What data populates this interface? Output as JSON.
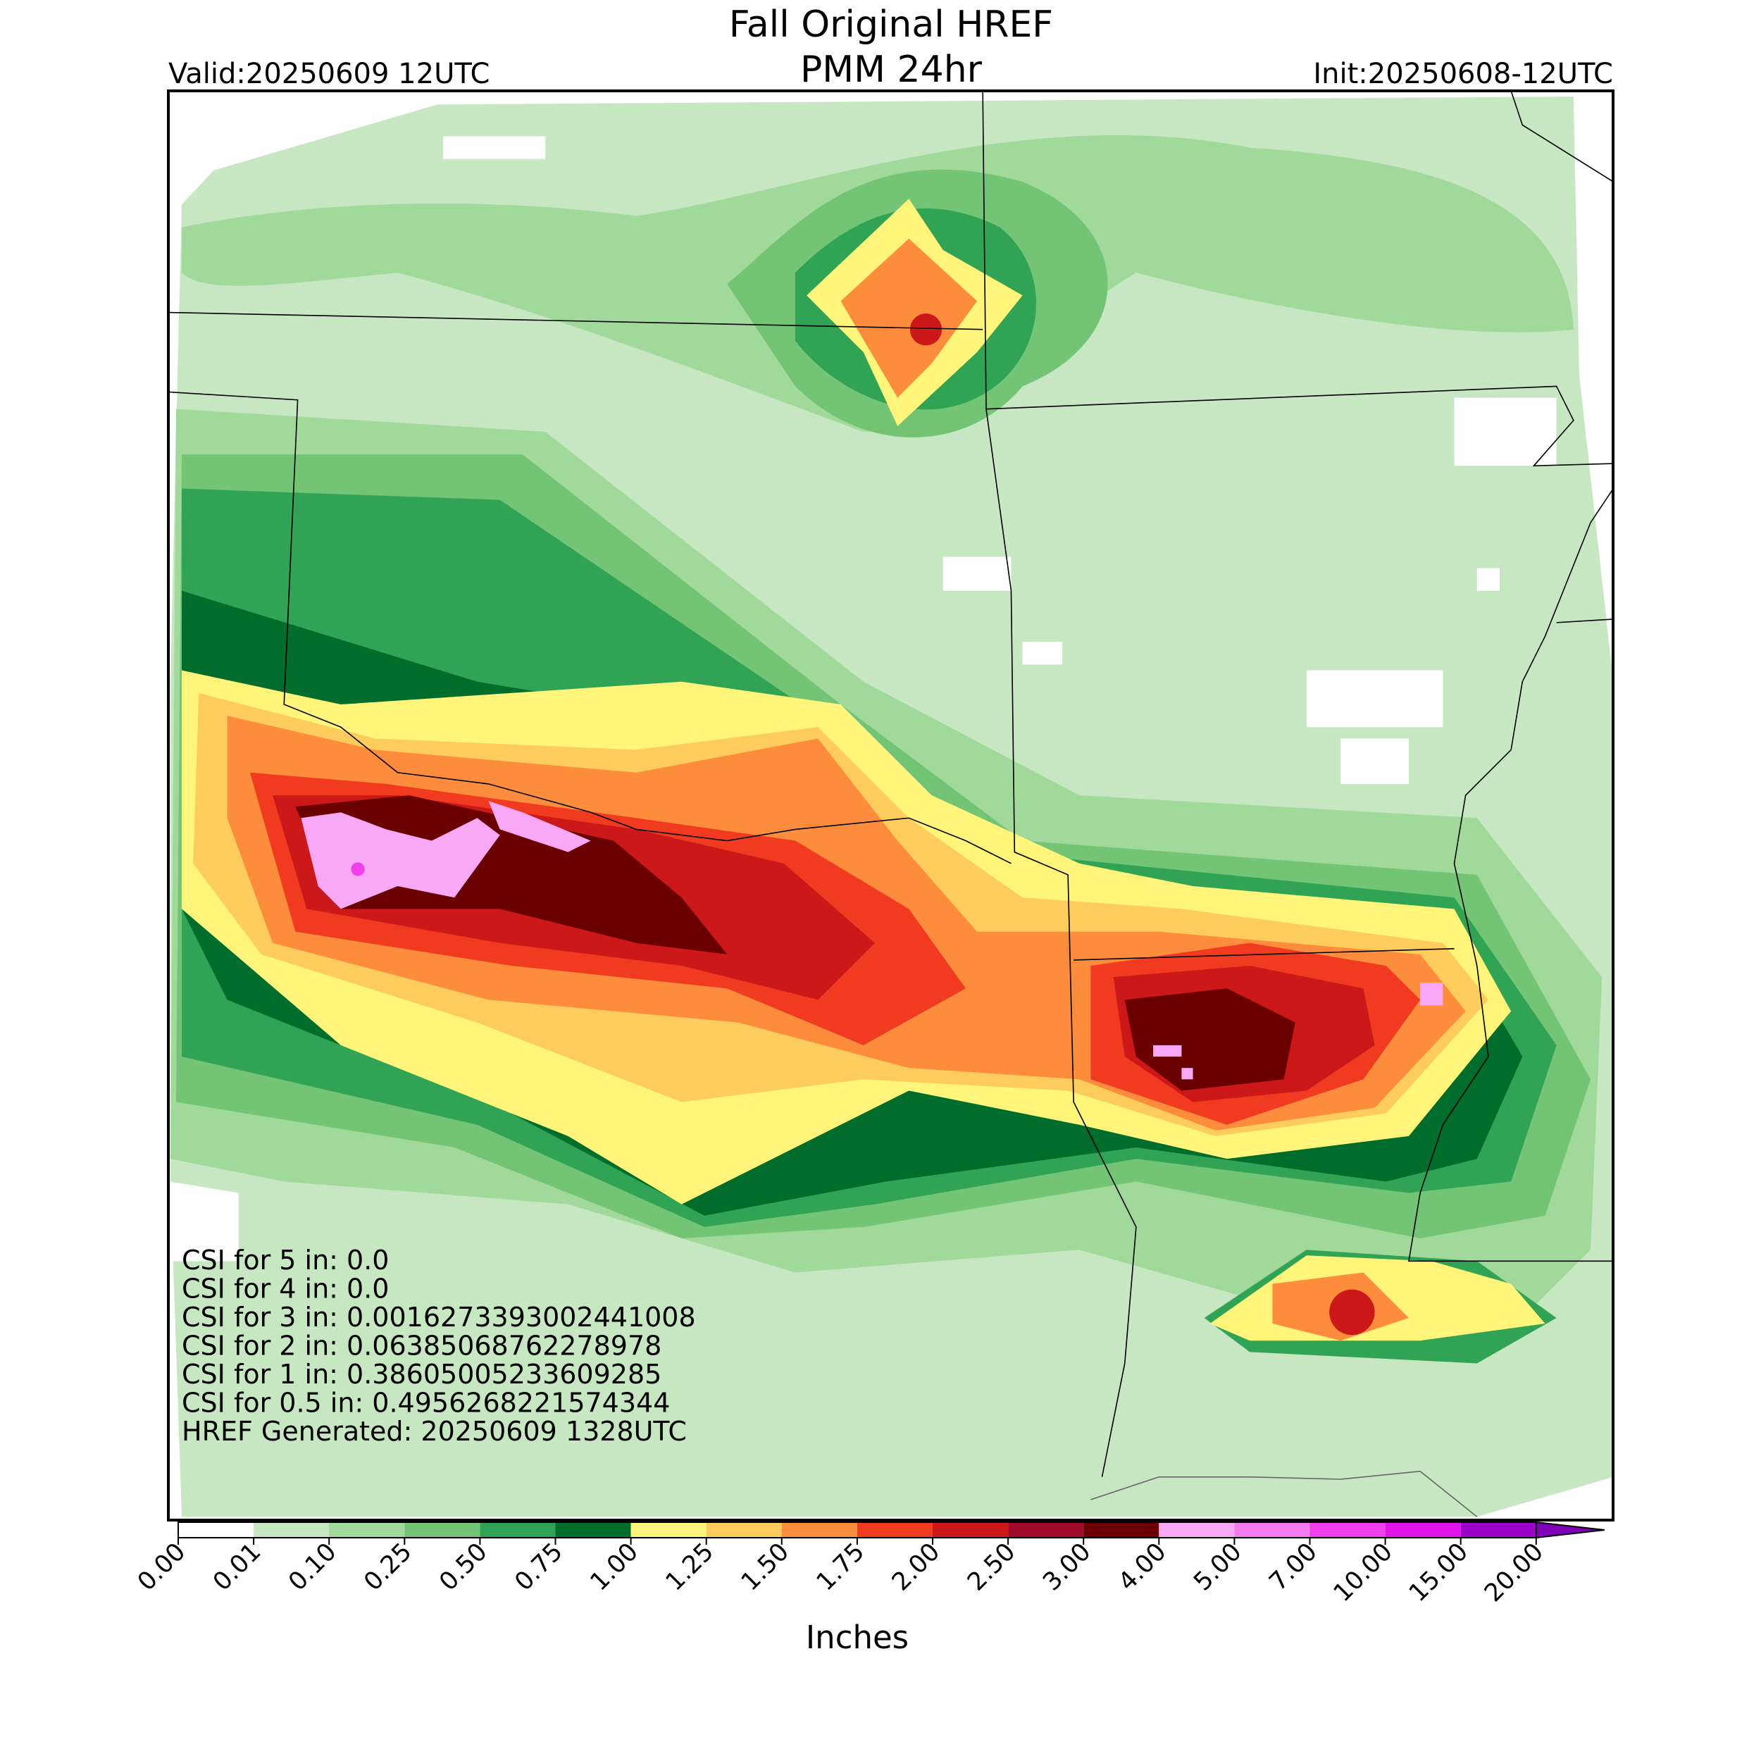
{
  "header": {
    "title_line1": "Fall Original HREF",
    "title_line2": "PMM 24hr",
    "valid": "Valid:20250609 12UTC",
    "init": "Init:20250608-12UTC"
  },
  "stats": [
    "CSI for 5 in: 0.0",
    "CSI for 4 in: 0.0",
    "CSI for 3 in: 0.0016273393002441008",
    "CSI for 2 in: 0.06385068762278978",
    "CSI for 1 in: 0.38605005233609285",
    "CSI for 0.5 in: 0.4956268221574344",
    "HREF Generated: 20250609 1328UTC"
  ],
  "colorbar": {
    "label": "Inches",
    "levels": [
      {
        "value": 0,
        "label": "0.00"
      },
      0.01,
      {
        "value": 0.1,
        "label": "0.10"
      },
      0.25,
      {
        "value": 0.5,
        "label": "0.50"
      },
      0.75,
      {
        "value": 1,
        "label": "1.00"
      },
      1.25,
      {
        "value": 1.5,
        "label": "1.50"
      },
      1.75,
      {
        "value": 2,
        "label": "2.00"
      },
      {
        "value": 2.5,
        "label": "2.50"
      },
      {
        "value": 3,
        "label": "3.00"
      },
      {
        "value": 4,
        "label": "4.00"
      },
      {
        "value": 5,
        "label": "5.00"
      },
      {
        "value": 7,
        "label": "7.00"
      },
      {
        "value": 10,
        "label": "10.00"
      },
      {
        "value": 15,
        "label": "15.00"
      },
      {
        "value": 20,
        "label": "20.00"
      }
    ],
    "colors": [
      "#ffffff",
      "#c7e7c3",
      "#a1d99b",
      "#74c476",
      "#31a354",
      "#006d2c",
      "#fff57a",
      "#fecc5c",
      "#fd8d3c",
      "#f03b20",
      "#cc1818",
      "#a00a2a",
      "#6b0000",
      "#f8a8f4",
      "#f47af0",
      "#f040ee",
      "#e014e8",
      "#9a00c8"
    ],
    "over_color": "#8000b8"
  }
}
